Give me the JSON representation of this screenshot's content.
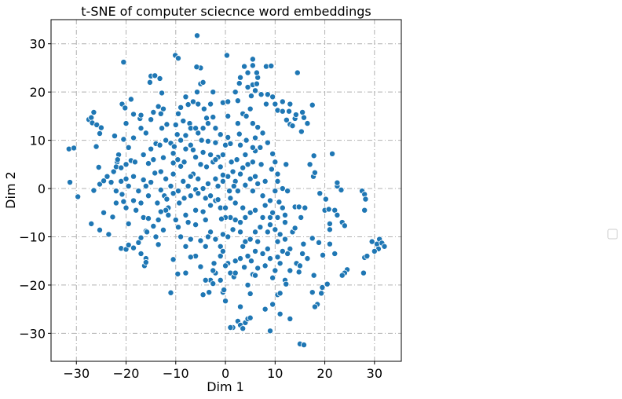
{
  "chart_data": {
    "type": "scatter",
    "title": "t-SNE of computer sciecnce word embeddings",
    "x_label": "Dim 1",
    "y_label": "Dim 2",
    "color": "#1f77b4",
    "grid": true,
    "xlim": [
      -35.1,
      35.4
    ],
    "ylim": [
      -35.8,
      35
    ],
    "xticks": [
      {
        "value": -30,
        "label": "−30"
      },
      {
        "value": -20,
        "label": "−20"
      },
      {
        "value": -10,
        "label": "−10"
      },
      0,
      10,
      20,
      30
    ],
    "yticks": [
      {
        "value": -30,
        "label": "−30"
      },
      {
        "value": -20,
        "label": "−20"
      },
      {
        "value": -10,
        "label": "−10"
      },
      0,
      10,
      20,
      30
    ],
    "x": [
      -31.5,
      -30.5,
      -31.3,
      -29.7,
      -27.5,
      -27,
      -26.5,
      -26.8,
      -25.9,
      -25,
      -25.3,
      -26,
      -25.5,
      -26.5,
      -25.3,
      -24.5,
      -23.8,
      -27,
      -25.3,
      -22.7,
      -22.5,
      -21.8,
      -22,
      -21,
      -22.3,
      -20.5,
      -21.5,
      -21.7,
      -23,
      -22,
      -21,
      -20.8,
      -20.5,
      -20,
      -22,
      -20,
      -19,
      -18.2,
      -20,
      -19.5,
      -20.8,
      -20.2,
      -20,
      -18.5,
      -19,
      -17.2,
      -17,
      -19.5,
      -21,
      -20,
      -19.5,
      -18.5,
      -17.5,
      -17,
      -16,
      -16.3,
      -16,
      -17,
      -16,
      -16.5,
      -15.5,
      -15.8,
      -14,
      -12.5,
      -13.5,
      -10.5,
      -9.6,
      -11,
      -8,
      -15.5,
      -16,
      -15,
      -16.5,
      -16.5,
      -15.5,
      -15,
      -14,
      -14.5,
      -14.2,
      -13,
      -12,
      -13,
      -12.3,
      -11.5,
      -12,
      -11.5,
      -13,
      -13.7,
      -11.8,
      -15,
      -14.2,
      -15.2,
      -13.2,
      -12.8,
      -13.5,
      -12.5,
      -13,
      -14.5,
      -15,
      -11.8,
      -12.8,
      -13.2,
      -12,
      -11,
      -10.3,
      -10.5,
      -9.6,
      -10.5,
      -12.5,
      -9,
      -8.3,
      -8,
      -7,
      -6.5,
      -6,
      -9,
      -9.7,
      -10,
      -9.5,
      -9,
      -8.5,
      -7.2,
      -7.5,
      -8,
      -6.5,
      -5.5,
      -5.7,
      -5,
      -4.5,
      -5,
      -5.8,
      -4.3,
      -3,
      -2.5,
      -3.8,
      -3.5,
      -2.5,
      -2,
      -4.5,
      -5.5,
      -4.8,
      -3.5,
      -2,
      -3,
      -4.5,
      -5,
      -3.8,
      -2.5,
      -1.5,
      -0.5,
      0,
      0.5,
      -1,
      0.5,
      -0.5,
      0.5,
      0.3,
      -10.1,
      -9.5,
      -5.7,
      -20.5,
      2,
      2.8,
      3,
      2.5,
      3.5,
      2.5,
      4.2,
      5,
      5.2,
      4.5,
      5.5,
      4.5,
      5.5,
      3.8,
      6.3,
      6,
      7.2,
      6.5,
      6.3,
      5.5,
      8.2,
      9.2,
      8.5,
      8.2,
      9.5,
      10,
      10.5,
      11.5,
      11.5,
      13,
      12.8,
      12.3,
      13,
      13.5,
      14,
      14.2,
      15.5,
      15.8,
      16.5,
      14.5,
      15.3,
      17.5,
      5.5,
      6.5,
      6,
      7.5,
      7,
      8.5,
      9.5,
      10,
      9.3,
      7.2,
      5.5,
      4.5,
      3.5,
      3,
      2.3,
      1.2,
      2,
      1.7,
      2.5,
      4,
      5,
      6,
      5.5,
      6.5,
      8,
      7.5,
      8,
      9,
      10.5,
      10,
      11.5,
      12.5,
      10.5,
      12.2,
      10.8,
      11.5,
      12,
      10.5,
      9,
      8.5,
      10,
      11,
      12,
      13.5,
      14,
      14,
      14.8,
      15.2,
      16,
      17.7,
      18,
      17,
      17.8,
      19,
      20.2,
      20,
      20.8,
      21,
      21,
      22,
      22.5,
      22.5,
      22.5,
      23.3,
      21.5,
      27.5,
      28,
      28.2,
      28,
      23.5,
      24,
      21,
      22,
      19.6,
      18.8,
      17.5,
      15.7,
      15.5,
      16.5,
      14.3,
      15,
      14.8,
      13,
      12,
      12.2,
      17.8,
      19.5,
      20.5,
      19.3,
      18.5,
      17.5,
      18,
      24.5,
      24,
      23.5,
      28,
      28.5,
      27.8,
      30.5,
      31,
      31.5,
      32,
      30.8,
      30,
      29.5,
      15,
      15.8,
      13,
      11,
      9.5,
      9,
      8,
      10.5,
      11,
      9.5,
      10,
      11,
      10.5,
      9,
      8.5,
      7.5,
      8,
      6.5,
      5.5,
      6,
      4.5,
      5,
      3,
      2.5,
      3,
      4,
      4.5,
      5,
      1.5,
      1,
      3.5,
      0,
      -0.5,
      -0.3,
      -1,
      -2,
      -2.5,
      -2.3,
      -3,
      -4,
      -4.5,
      -3.3,
      -5,
      -6,
      -7,
      -8,
      -9,
      -7,
      -6,
      -7.5,
      -9.5,
      -8.3,
      -9.3,
      -7,
      -6,
      -5.5,
      -4,
      -3,
      -2,
      -1.5,
      -1,
      -3,
      -4.5,
      -6,
      -4,
      -3,
      -2,
      -3.5,
      -5,
      -4,
      -1,
      0.5,
      1.5,
      1,
      2,
      3,
      4,
      5,
      6,
      3.5,
      2,
      1,
      0,
      0,
      -0.5,
      3,
      3.5,
      4,
      5,
      6,
      6.5,
      6,
      4.5,
      3,
      2,
      0.5,
      0,
      1,
      1.7,
      2,
      -1,
      -0.5,
      3.8,
      5.2,
      7,
      7.5,
      9,
      9.5,
      12,
      13,
      12.5,
      11.5,
      10.5,
      -2.5,
      -0.8,
      -1.5,
      -0.5,
      0.5,
      -2,
      -3.5,
      -4.5,
      -5.5,
      -6.5,
      -7.5,
      -8.5,
      -9.5,
      -10.5,
      -7,
      0.8,
      1.5,
      -1,
      -2,
      -0.5,
      1,
      3,
      4.2,
      2.8,
      6,
      5.5,
      4,
      -7,
      -6,
      -8,
      -10.5,
      -11,
      -8,
      -10,
      -13.5,
      -14.5,
      -18,
      -18.5,
      -17,
      -18.5,
      -17.5,
      -23.5,
      -24.5,
      -19.5,
      -18.5,
      -16,
      -17
    ],
    "values": [
      8.2,
      8.4,
      1.3,
      -1.7,
      14.3,
      14.7,
      15.8,
      13.6,
      13.2,
      12.6,
      11.4,
      8.7,
      4.4,
      -0.4,
      0.9,
      1.6,
      2.5,
      -7.3,
      -8.6,
      -5.9,
      3.5,
      5.5,
      4.5,
      4.3,
      10.9,
      10.2,
      7,
      6,
      1.3,
      -0.5,
      1.5,
      -1.2,
      -2.7,
      -4,
      -3,
      5,
      5.8,
      5.5,
      2,
      0.5,
      17.5,
      16.7,
      13.5,
      15.4,
      18.5,
      14.5,
      15.2,
      -7.3,
      -12.4,
      -12.6,
      -11.7,
      -12.3,
      -11.2,
      -13.5,
      -14.5,
      -16,
      -15.3,
      -10.2,
      -8.8,
      -6,
      -6.2,
      -9,
      -10,
      -8.6,
      -11.6,
      -14.7,
      -17.7,
      -21.6,
      -17.5,
      -1.5,
      0.5,
      1.3,
      1.8,
      7,
      5.2,
      8.2,
      9.3,
      6,
      3.2,
      3.5,
      2,
      -0.3,
      -1.5,
      -4,
      -4.5,
      -5.5,
      -4.8,
      -3,
      -2.2,
      23.3,
      23.4,
      22,
      22.8,
      19.8,
      17,
      16.5,
      15.5,
      15.8,
      14.3,
      13.3,
      12.5,
      9,
      10,
      9.4,
      8.7,
      7.3,
      6,
      5.3,
      6.4,
      4.6,
      5.5,
      8.2,
      9,
      8,
      6.5,
      10,
      11.2,
      13.2,
      15.5,
      16.8,
      14,
      13.5,
      17.4,
      19,
      18,
      17.5,
      20,
      21.7,
      22,
      25,
      25.2,
      16.5,
      17.5,
      20,
      14.6,
      13.5,
      14.8,
      12.5,
      12.5,
      11.5,
      10,
      9.8,
      9.5,
      7,
      7.5,
      5,
      4.5,
      5.5,
      6.5,
      7,
      9,
      10.6,
      11.2,
      15,
      17.8,
      18,
      27.6,
      27.6,
      27,
      31.7,
      26.2,
      20,
      21.8,
      23,
      18.2,
      15.5,
      13.5,
      15,
      16.5,
      19.2,
      21,
      21.5,
      24,
      25.5,
      25.3,
      21.7,
      20.3,
      19.5,
      23,
      24,
      26.8,
      25.3,
      25.4,
      19.5,
      17.5,
      19,
      17.5,
      16.2,
      16,
      18,
      17.5,
      16,
      14.2,
      13.3,
      13,
      14.5,
      15.3,
      15.8,
      14.7,
      13.5,
      24,
      11.8,
      17.3,
      13.5,
      12.7,
      10.5,
      11.5,
      8.5,
      9.5,
      7.2,
      5.5,
      4,
      5,
      5.5,
      5,
      4.3,
      3,
      6,
      5.5,
      1.5,
      0.5,
      -0.5,
      0.7,
      2,
      2.5,
      -0.5,
      1,
      1.5,
      -1.5,
      -3.5,
      -2.5,
      1.5,
      -0.5,
      0,
      -0.5,
      3,
      5,
      -2.8,
      -4,
      -5.5,
      -6,
      -7.5,
      -9,
      -8.5,
      -9.5,
      -10.5,
      -9,
      -8.2,
      -3.8,
      -3.8,
      -6,
      -4,
      2.5,
      3.3,
      5,
      6.8,
      -1,
      -2.2,
      -4.5,
      -4.3,
      -8.5,
      -7.3,
      -4.5,
      -5.5,
      0.5,
      1.2,
      -0.3,
      7.2,
      -0.5,
      -1.2,
      -2.2,
      -4.5,
      -7,
      -7.7,
      -11.5,
      -13.5,
      -13.8,
      -11.2,
      -10.3,
      -11.5,
      -13.5,
      -14.5,
      -15.5,
      -16,
      -17.3,
      -17,
      -19,
      -19.8,
      -18,
      -20.5,
      -19.8,
      -21.7,
      -24,
      -21.5,
      -24.5,
      -16.8,
      -17.5,
      -18,
      -14.3,
      -14,
      -17.5,
      -11.5,
      -10.5,
      -11.3,
      -12,
      -12.5,
      -13,
      -11,
      -32.2,
      -32.4,
      -27,
      -26,
      -24,
      -29.5,
      -25,
      -22,
      -21.7,
      -18.5,
      -17,
      -15.5,
      -14.2,
      -14.5,
      -12.5,
      -13.5,
      -16,
      -16.5,
      -17.8,
      -18,
      -20,
      -21.8,
      -24.5,
      -27.5,
      -28.3,
      -27.8,
      -27,
      -26.8,
      -28.8,
      -28.8,
      -29,
      -23.3,
      -21.5,
      -21,
      -19,
      -17.5,
      -17,
      -15.5,
      -19,
      -19,
      -22,
      -21.5,
      -16.2,
      -14,
      -14.2,
      -12,
      -10,
      -10.5,
      -7.5,
      -7,
      -8,
      -2,
      -3,
      -1.5,
      -0.2,
      -1,
      -2,
      -1.5,
      -2.5,
      -2.3,
      -4,
      -3.5,
      -4.8,
      -4.5,
      -6.5,
      -9,
      -10.5,
      -10,
      -10.8,
      -12,
      -12,
      -10,
      -8.5,
      -6,
      -6.5,
      -7,
      -6,
      -5,
      -4.5,
      -4,
      -3,
      -2,
      -4,
      -6,
      -9.5,
      -9,
      -12,
      -11,
      -10.5,
      -9,
      -11,
      -13,
      -14,
      -14.5,
      -15,
      -15.5,
      -16,
      -17.5,
      -18.3,
      -17.5,
      -14,
      -13,
      -16.3,
      -15,
      -8,
      -6,
      -6,
      -5,
      -7,
      -12.5,
      -13.5,
      -13,
      -11,
      -19.7,
      -6.3,
      0.5,
      1.5,
      2.5,
      2,
      1,
      0,
      2,
      3,
      0.5,
      1.5,
      -0.5,
      -1,
      2.5,
      -0.5,
      3.5,
      4.5,
      6,
      2.8,
      9.3,
      9,
      10,
      11.3,
      7.8,
      8.5,
      7,
      12.5,
      12.5,
      11,
      3,
      0.5,
      -5.5,
      -6.5,
      -6.5,
      -7.8,
      -4.5,
      -2.5,
      -3,
      2.5,
      -0.5,
      -9.5,
      -5,
      8.5,
      10.5,
      11.5,
      12.5
    ]
  }
}
